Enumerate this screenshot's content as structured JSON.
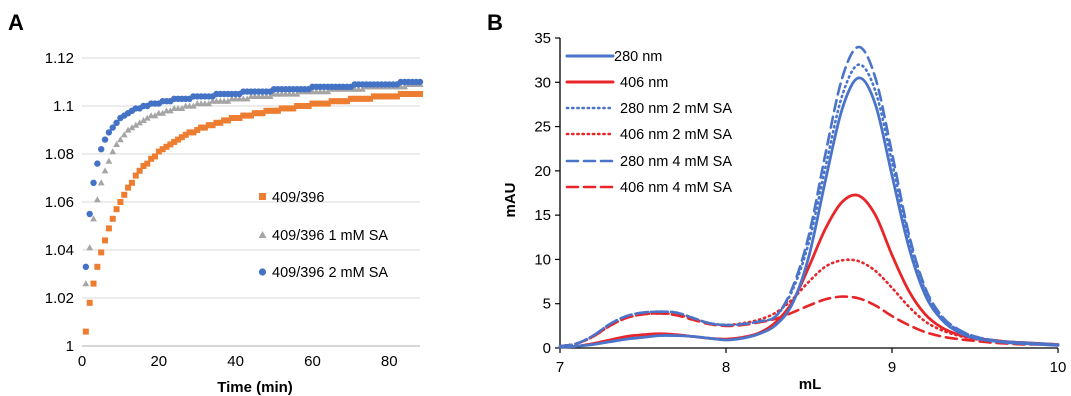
{
  "panels": [
    {
      "label": "A"
    },
    {
      "label": "B"
    }
  ],
  "colors": {
    "orange": "#ED7D31",
    "gray": "#A5A5A5",
    "blue": "#4472C4",
    "line_blue": "#4A74C9",
    "line_red": "#E8262A",
    "axis": "#BFBFBF"
  },
  "chart_data": [
    {
      "type": "scatter",
      "panel": "A",
      "title": "",
      "xlabel": "Time (min)",
      "ylabel": "",
      "xlim": [
        0,
        88
      ],
      "ylim": [
        1,
        1.12
      ],
      "xticks": [
        "0",
        "20",
        "40",
        "60",
        "80"
      ],
      "yticks": [
        "1",
        "1.02",
        "1.04",
        "1.06",
        "1.08",
        "1.1",
        "1.12"
      ],
      "grid": true,
      "legend_position": "center-right",
      "series": [
        {
          "name": "409/396",
          "marker": "square",
          "color": "#ED7D31",
          "x": [
            1,
            2,
            3,
            4,
            5,
            6,
            7,
            8,
            9,
            10,
            11,
            12,
            13,
            14,
            15,
            16,
            17,
            18,
            19,
            20,
            21,
            22,
            23,
            24,
            25,
            26,
            27,
            28,
            29,
            30,
            31,
            32,
            33,
            34,
            35,
            36,
            37,
            38,
            39,
            40,
            41,
            42,
            43,
            44,
            45,
            46,
            47,
            48,
            49,
            50,
            51,
            52,
            53,
            54,
            55,
            56,
            57,
            58,
            59,
            60,
            61,
            62,
            63,
            64,
            65,
            66,
            67,
            68,
            69,
            70,
            71,
            72,
            73,
            74,
            75,
            76,
            77,
            78,
            79,
            80,
            81,
            82,
            83,
            84,
            85,
            86,
            87,
            88
          ],
          "y": [
            1.006,
            1.018,
            1.026,
            1.033,
            1.039,
            1.044,
            1.049,
            1.053,
            1.057,
            1.06,
            1.063,
            1.066,
            1.068,
            1.071,
            1.073,
            1.075,
            1.076,
            1.078,
            1.079,
            1.081,
            1.082,
            1.083,
            1.084,
            1.085,
            1.086,
            1.087,
            1.088,
            1.089,
            1.089,
            1.09,
            1.091,
            1.091,
            1.092,
            1.092,
            1.093,
            1.093,
            1.094,
            1.094,
            1.095,
            1.095,
            1.095,
            1.096,
            1.096,
            1.096,
            1.097,
            1.097,
            1.097,
            1.098,
            1.098,
            1.098,
            1.098,
            1.099,
            1.099,
            1.099,
            1.099,
            1.1,
            1.1,
            1.1,
            1.1,
            1.101,
            1.101,
            1.101,
            1.101,
            1.101,
            1.102,
            1.102,
            1.102,
            1.102,
            1.102,
            1.103,
            1.103,
            1.103,
            1.103,
            1.103,
            1.103,
            1.104,
            1.104,
            1.104,
            1.104,
            1.104,
            1.104,
            1.104,
            1.105,
            1.105,
            1.105,
            1.105,
            1.105,
            1.105
          ]
        },
        {
          "name": "409/396 1 mM SA",
          "marker": "triangle",
          "color": "#A5A5A5",
          "x": [
            1,
            2,
            3,
            4,
            5,
            6,
            7,
            8,
            9,
            10,
            11,
            12,
            13,
            14,
            15,
            16,
            17,
            18,
            19,
            20,
            21,
            22,
            23,
            24,
            25,
            26,
            27,
            28,
            29,
            30,
            31,
            32,
            33,
            34,
            35,
            36,
            37,
            38,
            39,
            40,
            41,
            42,
            43,
            44,
            45,
            46,
            47,
            48,
            49,
            50,
            51,
            52,
            53,
            54,
            55,
            56,
            57,
            58,
            59,
            60,
            61,
            62,
            63,
            64,
            65,
            66,
            67,
            68,
            69,
            70,
            71,
            72,
            73,
            74,
            75,
            76,
            77,
            78,
            79,
            80,
            81,
            82,
            83,
            84,
            85,
            86,
            87,
            88
          ],
          "y": [
            1.026,
            1.041,
            1.053,
            1.061,
            1.068,
            1.073,
            1.077,
            1.081,
            1.084,
            1.086,
            1.088,
            1.09,
            1.091,
            1.092,
            1.093,
            1.094,
            1.095,
            1.096,
            1.096,
            1.097,
            1.097,
            1.098,
            1.098,
            1.099,
            1.099,
            1.099,
            1.1,
            1.1,
            1.1,
            1.101,
            1.101,
            1.101,
            1.101,
            1.102,
            1.102,
            1.102,
            1.102,
            1.102,
            1.103,
            1.103,
            1.103,
            1.103,
            1.103,
            1.104,
            1.104,
            1.104,
            1.104,
            1.104,
            1.104,
            1.105,
            1.105,
            1.105,
            1.105,
            1.105,
            1.105,
            1.105,
            1.106,
            1.106,
            1.106,
            1.106,
            1.106,
            1.106,
            1.106,
            1.106,
            1.107,
            1.107,
            1.107,
            1.107,
            1.107,
            1.107,
            1.107,
            1.107,
            1.107,
            1.108,
            1.108,
            1.108,
            1.108,
            1.108,
            1.108,
            1.108,
            1.108,
            1.108,
            1.108,
            1.108,
            1.109,
            1.109,
            1.109,
            1.109
          ]
        },
        {
          "name": "409/396 2 mM SA",
          "marker": "circle",
          "color": "#4472C4",
          "x": [
            1,
            2,
            3,
            4,
            5,
            6,
            7,
            8,
            9,
            10,
            11,
            12,
            13,
            14,
            15,
            16,
            17,
            18,
            19,
            20,
            21,
            22,
            23,
            24,
            25,
            26,
            27,
            28,
            29,
            30,
            31,
            32,
            33,
            34,
            35,
            36,
            37,
            38,
            39,
            40,
            41,
            42,
            43,
            44,
            45,
            46,
            47,
            48,
            49,
            50,
            51,
            52,
            53,
            54,
            55,
            56,
            57,
            58,
            59,
            60,
            61,
            62,
            63,
            64,
            65,
            66,
            67,
            68,
            69,
            70,
            71,
            72,
            73,
            74,
            75,
            76,
            77,
            78,
            79,
            80,
            81,
            82,
            83,
            84,
            85,
            86,
            87,
            88
          ],
          "y": [
            1.033,
            1.055,
            1.068,
            1.076,
            1.082,
            1.086,
            1.089,
            1.091,
            1.093,
            1.095,
            1.096,
            1.097,
            1.098,
            1.099,
            1.099,
            1.1,
            1.1,
            1.101,
            1.101,
            1.101,
            1.102,
            1.102,
            1.102,
            1.103,
            1.103,
            1.103,
            1.103,
            1.103,
            1.104,
            1.104,
            1.104,
            1.104,
            1.104,
            1.104,
            1.105,
            1.105,
            1.105,
            1.105,
            1.105,
            1.105,
            1.105,
            1.106,
            1.106,
            1.106,
            1.106,
            1.106,
            1.106,
            1.106,
            1.106,
            1.107,
            1.107,
            1.107,
            1.107,
            1.107,
            1.107,
            1.107,
            1.107,
            1.107,
            1.107,
            1.108,
            1.108,
            1.108,
            1.108,
            1.108,
            1.108,
            1.108,
            1.108,
            1.108,
            1.108,
            1.108,
            1.109,
            1.109,
            1.109,
            1.109,
            1.109,
            1.109,
            1.109,
            1.109,
            1.109,
            1.109,
            1.109,
            1.109,
            1.11,
            1.11,
            1.11,
            1.11,
            1.11,
            1.11
          ]
        }
      ]
    },
    {
      "type": "line",
      "panel": "B",
      "title": "",
      "xlabel": "mL",
      "ylabel": "mAU",
      "xlim": [
        7,
        10
      ],
      "ylim": [
        0,
        35
      ],
      "xticks": [
        "7",
        "8",
        "9",
        "10"
      ],
      "yticks": [
        "0",
        "5",
        "10",
        "15",
        "20",
        "25",
        "30",
        "35"
      ],
      "grid": false,
      "legend_position": "top-left",
      "x": [
        7.0,
        7.1,
        7.2,
        7.3,
        7.4,
        7.5,
        7.6,
        7.7,
        7.8,
        7.9,
        8.0,
        8.1,
        8.2,
        8.3,
        8.4,
        8.5,
        8.6,
        8.7,
        8.8,
        8.9,
        9.0,
        9.1,
        9.2,
        9.3,
        9.4,
        9.5,
        9.6,
        9.7,
        9.8,
        9.9,
        10.0
      ],
      "series": [
        {
          "name": "280 nm",
          "color": "#4A74C9",
          "dash": "solid",
          "values": [
            0.1,
            0.2,
            0.4,
            0.7,
            1.0,
            1.2,
            1.4,
            1.4,
            1.3,
            1.1,
            0.9,
            1.1,
            1.6,
            2.6,
            5.0,
            10.4,
            19.0,
            27.0,
            30.5,
            27.5,
            19.5,
            11.5,
            6.0,
            3.2,
            1.8,
            1.1,
            0.8,
            0.6,
            0.5,
            0.4,
            0.3
          ]
        },
        {
          "name": "406 nm",
          "color": "#E8262A",
          "dash": "solid",
          "values": [
            0.1,
            0.2,
            0.5,
            0.9,
            1.3,
            1.5,
            1.6,
            1.5,
            1.3,
            1.1,
            1.0,
            1.2,
            1.7,
            2.9,
            5.2,
            9.2,
            13.5,
            16.5,
            17.2,
            15.0,
            10.5,
            6.5,
            3.8,
            2.3,
            1.5,
            1.1,
            0.9,
            0.7,
            0.6,
            0.5,
            0.4
          ]
        },
        {
          "name": "280 nm 2 mM SA",
          "color": "#4A74C9",
          "dash": "dotted",
          "values": [
            0.2,
            0.5,
            1.4,
            2.7,
            3.6,
            4.0,
            4.1,
            4.0,
            3.4,
            2.8,
            2.6,
            2.7,
            3.0,
            3.6,
            6.5,
            12.0,
            20.5,
            28.5,
            32.0,
            29.0,
            21.0,
            12.5,
            6.5,
            3.5,
            2.0,
            1.3,
            0.9,
            0.7,
            0.6,
            0.5,
            0.4
          ]
        },
        {
          "name": "406 nm 2 mM SA",
          "color": "#E8262A",
          "dash": "dotted",
          "values": [
            0.2,
            0.5,
            1.3,
            2.5,
            3.4,
            3.8,
            3.9,
            3.8,
            3.3,
            2.8,
            2.6,
            2.8,
            3.2,
            4.0,
            5.5,
            7.5,
            9.2,
            9.9,
            9.8,
            8.7,
            6.8,
            4.7,
            3.0,
            2.0,
            1.4,
            1.0,
            0.8,
            0.7,
            0.6,
            0.5,
            0.4
          ]
        },
        {
          "name": "280 nm 4 mM SA",
          "color": "#4A74C9",
          "dash": "dashed",
          "values": [
            0.2,
            0.5,
            1.4,
            2.7,
            3.6,
            4.0,
            4.1,
            4.0,
            3.4,
            2.8,
            2.6,
            2.7,
            3.0,
            3.6,
            6.8,
            12.8,
            22.0,
            30.5,
            34.0,
            30.5,
            22.0,
            13.0,
            6.8,
            3.6,
            2.1,
            1.3,
            0.9,
            0.7,
            0.6,
            0.5,
            0.4
          ]
        },
        {
          "name": "406 nm 4 mM SA",
          "color": "#E8262A",
          "dash": "dashed",
          "values": [
            0.2,
            0.5,
            1.3,
            2.5,
            3.4,
            3.8,
            3.9,
            3.7,
            3.2,
            2.7,
            2.5,
            2.6,
            2.9,
            3.3,
            4.0,
            4.8,
            5.5,
            5.8,
            5.6,
            4.8,
            3.6,
            2.6,
            1.8,
            1.3,
            1.0,
            0.8,
            0.6,
            0.5,
            0.4,
            0.4,
            0.3
          ]
        }
      ]
    }
  ]
}
